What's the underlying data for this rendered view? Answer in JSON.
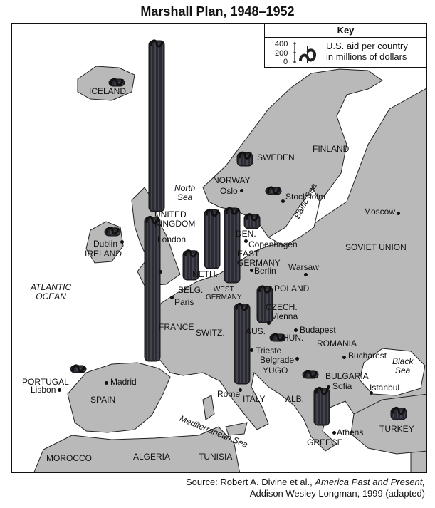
{
  "title": "Marshall Plan, 1948–1952",
  "key": {
    "heading": "Key",
    "ticks": [
      "400",
      "200",
      "0"
    ],
    "description_line1": "U.S. aid per country",
    "description_line2": "in millions of dollars",
    "symbol_icon": "dollar-sign-icon"
  },
  "aid_data": [
    {
      "country": "UNITED KINGDOM",
      "aid_millions": 3200
    },
    {
      "country": "FRANCE",
      "aid_millions": 2700
    },
    {
      "country": "WEST GERMANY",
      "aid_millions": 1400
    },
    {
      "country": "ITALY",
      "aid_millions": 1500
    },
    {
      "country": "NETH.",
      "aid_millions": 1100
    },
    {
      "country": "AUS.",
      "aid_millions": 680
    },
    {
      "country": "BELG.",
      "aid_millions": 550
    },
    {
      "country": "GREECE",
      "aid_millions": 700
    },
    {
      "country": "DEN.",
      "aid_millions": 270
    },
    {
      "country": "NORWAY",
      "aid_millions": 250
    },
    {
      "country": "SWEDEN",
      "aid_millions": 110
    },
    {
      "country": "IRELAND",
      "aid_millions": 150
    },
    {
      "country": "TURKEY",
      "aid_millions": 220
    },
    {
      "country": "YUGO",
      "aid_millions": 110
    },
    {
      "country": "PORTUGAL",
      "aid_millions": 50
    },
    {
      "country": "ICELAND",
      "aid_millions": 30
    },
    {
      "country": "TRIESTE",
      "aid_millions": 30
    }
  ],
  "labels": {
    "iceland": "ICELAND",
    "north_sea_1": "North",
    "north_sea_2": "Sea",
    "norway": "NORWAY",
    "sweden": "SWEDEN",
    "finland": "FINLAND",
    "uk_1": "UNITED",
    "uk_2": "KINGDOM",
    "ireland": "IRELAND",
    "den": "DEN.",
    "east_germany_1": "EAST",
    "east_germany_2": "GERMANY",
    "neth": "NETH.",
    "belg": "BELG.",
    "west_germany_1": "WEST",
    "west_germany_2": "GERMANY",
    "poland": "POLAND",
    "czech": "CZECH.",
    "soviet_union": "SOVIET UNION",
    "atlantic_1": "ATLANTIC",
    "atlantic_2": "OCEAN",
    "france": "FRANCE",
    "switz": "SWITZ.",
    "aus": "AUS.",
    "hun": "HUN.",
    "romania": "ROMANIA",
    "yugo": "YUGO",
    "bulgaria": "BULGARIA",
    "black_sea_1": "Black",
    "black_sea_2": "Sea",
    "baltic_sea": "Baltic Sea",
    "portugal": "PORTUGAL",
    "spain": "SPAIN",
    "italy": "ITALY",
    "alb": "ALB.",
    "greece": "GREECE",
    "turkey": "TURKEY",
    "mediterranean": "Mediterranean Sea",
    "morocco": "MOROCCO",
    "algeria": "ALGERIA",
    "tunisia": "TUNISIA"
  },
  "cities": {
    "oslo": "Oslo",
    "stockholm": "Stockholm",
    "moscow": "Moscow",
    "copenhagen": "Copenhagen",
    "berlin": "Berlin",
    "dublin": "Dublin",
    "london": "London",
    "warsaw": "Warsaw",
    "paris": "Paris",
    "vienna": "Vienna",
    "budapest": "Budapest",
    "trieste": "Trieste",
    "belgrade": "Belgrade",
    "bucharest": "Bucharest",
    "sofia": "Sofia",
    "istanbul": "Istanbul",
    "madrid": "Madrid",
    "lisbon": "Lisbon",
    "rome": "Rome",
    "athens": "Athens"
  },
  "source": {
    "prefix": "Source: Robert A. Divine et al., ",
    "book": "America Past and Present,",
    "line2": "Addison Wesley Longman, 1999 (adapted)"
  }
}
